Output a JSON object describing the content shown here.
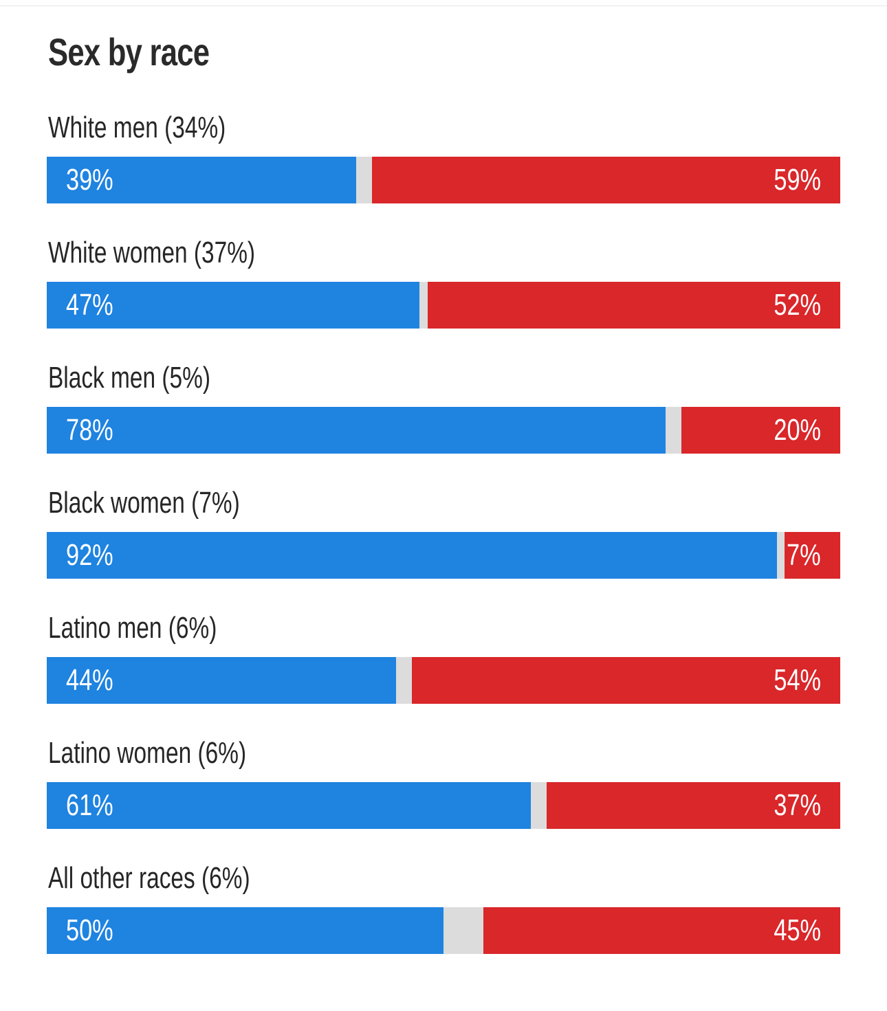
{
  "chart_data": {
    "type": "bar",
    "orientation": "horizontal-stacked",
    "title": "Sex by race",
    "categories": [
      "White men (34%)",
      "White women (37%)",
      "Black men (5%)",
      "Black women (7%)",
      "Latino men (6%)",
      "Latino women (6%)",
      "All other races (6%)"
    ],
    "series": [
      {
        "values": [
          39,
          47,
          78,
          92,
          44,
          61,
          50
        ],
        "labels": [
          "39%",
          "47%",
          "78%",
          "92%",
          "44%",
          "61%",
          "50%"
        ],
        "color": "#1f83e0"
      },
      {
        "values": [
          59,
          52,
          20,
          7,
          54,
          37,
          45
        ],
        "labels": [
          "59%",
          "52%",
          "20%",
          "7%",
          "54%",
          "37%",
          "45%"
        ],
        "color": "#d9272a"
      }
    ],
    "remainder_color": "#dcdcdc",
    "xlim": [
      0,
      100
    ],
    "grid": false,
    "legend": "none"
  }
}
